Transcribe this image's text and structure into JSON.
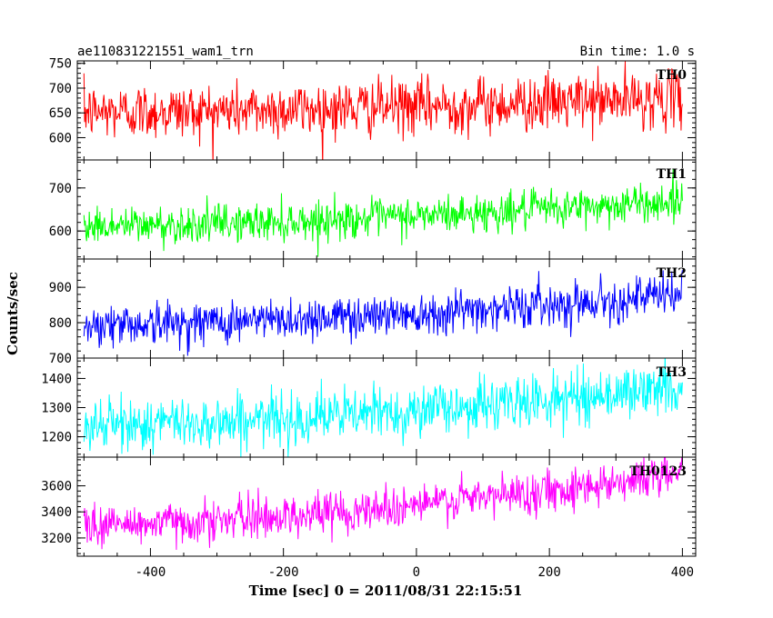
{
  "header": {
    "title": "ae110831221551_wam1_trn",
    "bin_time": "Bin time: 1.0 s"
  },
  "chart_data": {
    "type": "line",
    "xlabel": "Time [sec] 0 = 2011/08/31 22:15:51",
    "ylabel": "Counts/sec",
    "xlim": [
      -510,
      420
    ],
    "xticks": [
      -400,
      -200,
      0,
      200,
      400
    ],
    "x_range": [
      -500,
      400
    ],
    "bin_time_s": 1.0,
    "panels": [
      {
        "name": "TH0",
        "color": "#ff0000",
        "ylim": [
          555,
          755
        ],
        "yticks": [
          600,
          650,
          700,
          750
        ],
        "start": 652,
        "end": 680,
        "noise": 28
      },
      {
        "name": "TH1",
        "color": "#00ff00",
        "ylim": [
          535,
          765
        ],
        "yticks": [
          600,
          700
        ],
        "start": 612,
        "end": 670,
        "noise": 22
      },
      {
        "name": "TH2",
        "color": "#0000ff",
        "ylim": [
          700,
          980
        ],
        "yticks": [
          700,
          800,
          900
        ],
        "start": 795,
        "end": 880,
        "noise": 30
      },
      {
        "name": "TH3",
        "color": "#00ffff",
        "ylim": [
          1130,
          1470
        ],
        "yticks": [
          1200,
          1300,
          1400
        ],
        "start": 1240,
        "end": 1370,
        "noise": 45
      },
      {
        "name": "TH0123",
        "color": "#ff00ff",
        "ylim": [
          3060,
          3820
        ],
        "yticks": [
          3200,
          3400,
          3600
        ],
        "start": 3300,
        "end": 3700,
        "noise": 80
      }
    ]
  }
}
